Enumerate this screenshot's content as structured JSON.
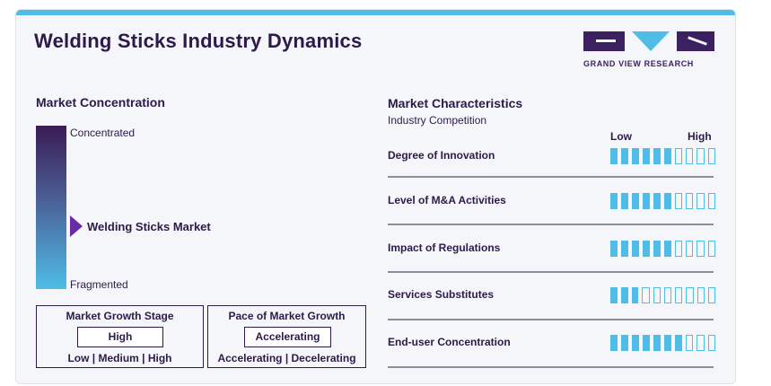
{
  "header": {
    "title": "Welding Sticks Industry Dynamics"
  },
  "logo": {
    "text": "GRAND VIEW RESEARCH"
  },
  "concentration": {
    "title": "Market Concentration",
    "top_label": "Concentrated",
    "bottom_label": "Fragmented",
    "marker_label": "Welding Sticks Market"
  },
  "growth_stage": {
    "title": "Market Growth Stage",
    "value": "High",
    "options": "Low | Medium | High"
  },
  "growth_pace": {
    "title": "Pace of Market Growth",
    "value": "Accelerating",
    "options": "Accelerating | Decelerating"
  },
  "characteristics": {
    "title": "Market Characteristics",
    "subtitle": "Industry Competition",
    "scale_low": "Low",
    "scale_high": "High",
    "rows": [
      {
        "label": "Degree of Innovation",
        "level": 6,
        "max": 10
      },
      {
        "label": "Level of M&A Activities",
        "level": 6,
        "max": 10
      },
      {
        "label": "Impact of Regulations",
        "level": 6,
        "max": 10
      },
      {
        "label": "Services Substitutes",
        "level": 3,
        "max": 10
      },
      {
        "label": "End-user Concentration",
        "level": 7,
        "max": 10
      }
    ]
  },
  "colors": {
    "accent": "#4fbde7",
    "dark": "#2d1a4a",
    "marker": "#6a2ba7"
  }
}
